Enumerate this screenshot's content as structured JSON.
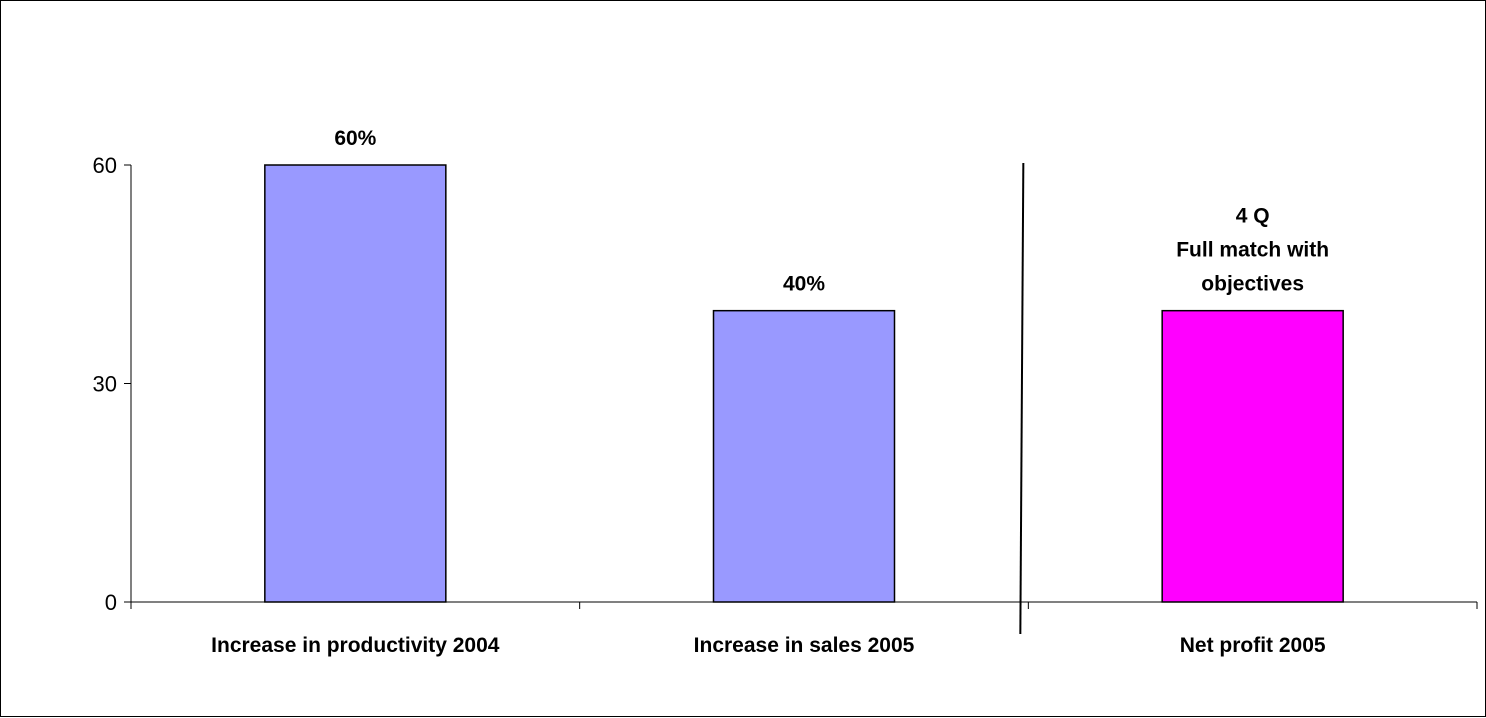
{
  "chart_data": {
    "type": "bar",
    "categories": [
      "Increase in productivity 2004",
      "Increase in sales 2005",
      "Net profit 2005"
    ],
    "values": [
      60,
      40,
      40
    ],
    "data_labels": [
      [
        "60%"
      ],
      [
        "40%"
      ],
      [
        "4 Q",
        "Full match with",
        "objectives"
      ]
    ],
    "colors": [
      "#9999ff",
      "#9999ff",
      "#ff00ff"
    ],
    "ylim": [
      0,
      60
    ],
    "yticks": [
      0,
      30,
      60
    ],
    "ytick_labels": [
      "0",
      "30",
      "60"
    ],
    "separator_after_category": 1,
    "grid": false,
    "legend": "none"
  }
}
